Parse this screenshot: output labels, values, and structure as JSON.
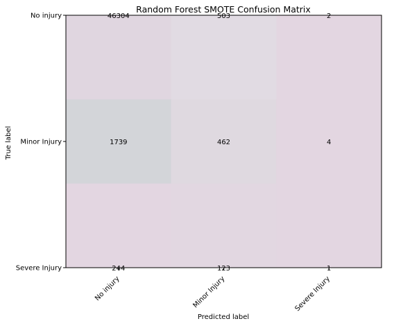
{
  "chart_data": {
    "type": "heatmap",
    "title": "Random Forest SMOTE Confusion Matrix",
    "xlabel": "Predicted label",
    "ylabel": "True label",
    "x_categories": [
      "No injury",
      "Minor Injury",
      "Severe Injury"
    ],
    "y_categories": [
      "No injury",
      "Minor Injury",
      "Severe Injury"
    ],
    "values": [
      [
        46304,
        503,
        2
      ],
      [
        1739,
        462,
        4
      ],
      [
        244,
        123,
        1
      ]
    ],
    "cell_colors": [
      [
        "#e0d6e0",
        "#e1dbe3",
        "#e3d6e1"
      ],
      [
        "#d3d5d9",
        "#dfd9e0",
        "#e3d6e1"
      ],
      [
        "#e3d6e1",
        "#e2d7e1",
        "#e3d6e1"
      ]
    ],
    "text_color": "#000000",
    "x_tick_rotation_deg": 45,
    "grid": false,
    "legend": "none"
  }
}
